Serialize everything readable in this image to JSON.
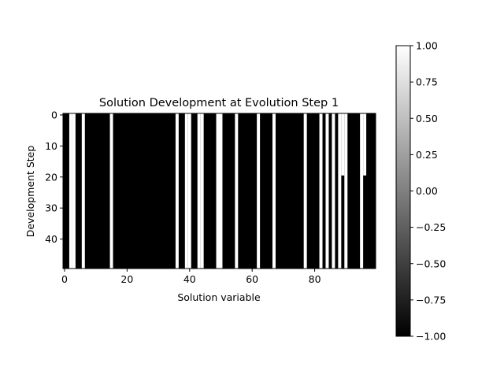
{
  "chart_data": {
    "type": "heatmap",
    "title": "Solution Development at Evolution Step 1",
    "xlabel": "Solution variable",
    "ylabel": "Development Step",
    "n_cols": 100,
    "n_rows": 50,
    "x_ticks": [
      0,
      20,
      40,
      60,
      80
    ],
    "y_ticks": [
      0,
      10,
      20,
      30,
      40
    ],
    "colormap": "gray",
    "vmin": -1.0,
    "vmax": 1.0,
    "colorbar_ticks": [
      "1.00",
      "0.75",
      "0.50",
      "0.25",
      "0.00",
      "−0.25",
      "−0.50",
      "−0.75",
      "−1.00"
    ],
    "colorbar_tick_values": [
      1.0,
      0.75,
      0.5,
      0.25,
      0.0,
      -0.25,
      -0.5,
      -0.75,
      -1.0
    ],
    "white_columns_all_rows": [
      2,
      3,
      6,
      15,
      36,
      39,
      40,
      43,
      44,
      49,
      50,
      55,
      62,
      67,
      77,
      82,
      84,
      86,
      88,
      95
    ],
    "white_cells_partial": [
      {
        "col": 89,
        "from_row": 0,
        "to_row": 19
      },
      {
        "col": 90,
        "from_row": 0,
        "to_row": 49
      },
      {
        "col": 96,
        "from_row": 0,
        "to_row": 19
      }
    ],
    "grid": false
  }
}
